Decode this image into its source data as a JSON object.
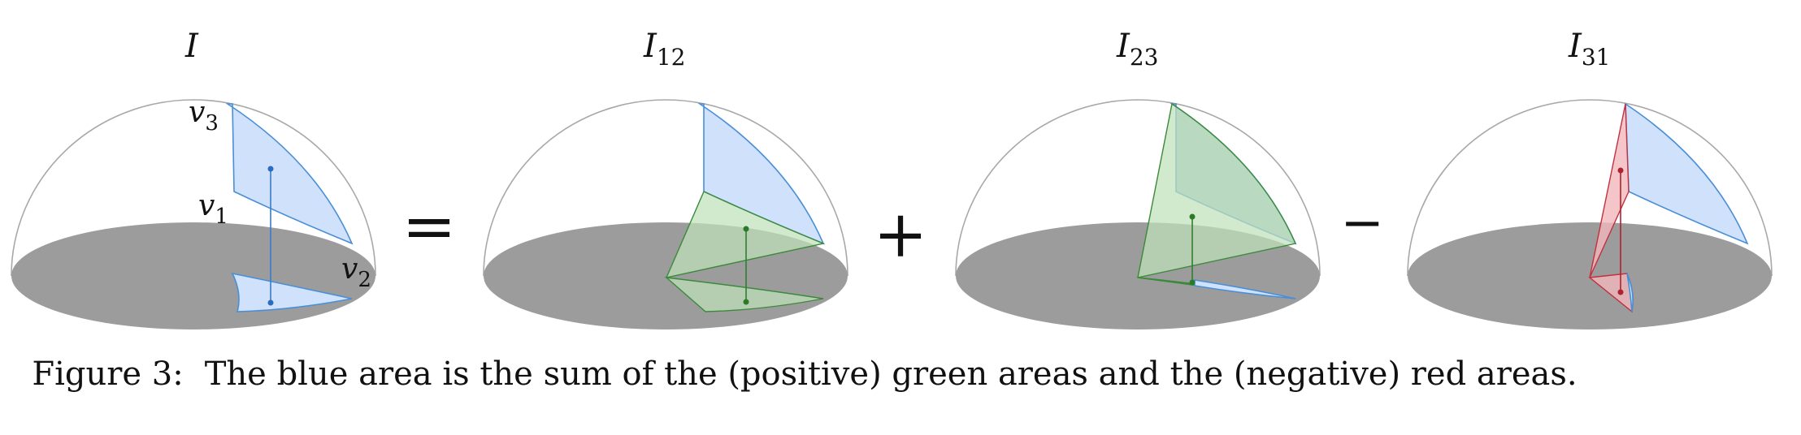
{
  "panels": [
    {
      "label": "I",
      "subscript": ""
    },
    {
      "label": "I",
      "subscript": "12"
    },
    {
      "label": "I",
      "subscript": "23"
    },
    {
      "label": "I",
      "subscript": "31"
    }
  ],
  "vertex_labels": {
    "v3": {
      "base": "v",
      "sub": "3"
    },
    "v1": {
      "base": "v",
      "sub": "1"
    },
    "v2": {
      "base": "v",
      "sub": "2"
    }
  },
  "operators": [
    "=",
    "+",
    "−"
  ],
  "caption": {
    "tag": "Figure 3:",
    "text": "The blue area is the sum of the (positive) green areas and the (negative) red areas."
  },
  "colors": {
    "blue_area": "#cfe1fb",
    "green_area": "#bfe0b8",
    "red_area": "#f3b8bc",
    "disk": "#9c9c9c"
  }
}
